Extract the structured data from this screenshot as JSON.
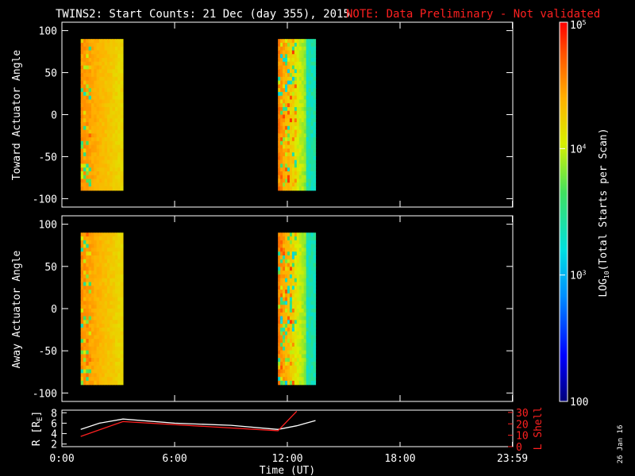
{
  "title": "TWINS2: Start Counts: 21 Dec (day 355), 2015",
  "note": "NOTE: Data Preliminary - Not validated",
  "date_stamp": "26 Jan 16",
  "colors": {
    "background": "#000000",
    "axes": "#ffffff",
    "note": "#ff2020",
    "r_line": "#ffffff",
    "lshell_line": "#ff2020"
  },
  "chart_data": [
    {
      "type": "heatmap",
      "ylabel": "Toward Actuator Angle",
      "ylim": [
        -110,
        110
      ],
      "yticks": [
        100,
        50,
        0,
        -50,
        -100
      ],
      "xlim": [
        0,
        24
      ],
      "data_blocks": [
        {
          "t_start": 1.0,
          "t_end": 3.25,
          "angle_min": -90,
          "angle_max": 90
        },
        {
          "t_start": 11.5,
          "t_end": 13.5,
          "angle_min": -90,
          "angle_max": 90
        }
      ]
    },
    {
      "type": "heatmap",
      "ylabel": "Away Actuator Angle",
      "ylim": [
        -110,
        110
      ],
      "yticks": [
        100,
        50,
        0,
        -50,
        -100
      ],
      "xlim": [
        0,
        24
      ],
      "data_blocks": [
        {
          "t_start": 1.0,
          "t_end": 3.25,
          "angle_min": -90,
          "angle_max": 90
        },
        {
          "t_start": 11.5,
          "t_end": 13.5,
          "angle_min": -90,
          "angle_max": 90
        }
      ]
    },
    {
      "type": "line",
      "ylabel": "R [R",
      "ylabel_sub": "E",
      "ylabel_close": "]",
      "xlabel": "Time (UT)",
      "xlim": [
        0,
        24
      ],
      "yticks_left": [
        8,
        6,
        4,
        2
      ],
      "ylim_left": [
        1.5,
        8.5
      ],
      "right_label": "L Shell",
      "yticks_right": [
        30,
        20,
        10,
        0
      ],
      "ylim_right": [
        0,
        32
      ],
      "xtick_labels": [
        "0:00",
        "6:00",
        "12:00",
        "18:00",
        "23:59"
      ],
      "xtick_values": [
        0,
        6,
        12,
        18,
        23.98
      ],
      "series": [
        {
          "axis": "left",
          "color": "#ffffff",
          "x": [
            1.0,
            2.0,
            3.25,
            6.0,
            9.0,
            11.5,
            12.5,
            13.5
          ],
          "y": [
            4.8,
            6.0,
            6.8,
            6.0,
            5.6,
            4.8,
            5.5,
            6.5
          ]
        },
        {
          "axis": "right",
          "color": "#ff2020",
          "x": [
            1.0,
            3.25,
            11.5,
            12.5
          ],
          "y": [
            9,
            22,
            14,
            31
          ]
        }
      ]
    }
  ],
  "colorbar": {
    "label": "LOG",
    "label_sub": "10",
    "label_rest": "(Total Starts per Scan)",
    "ticks": [
      {
        "text": "10",
        "sup": "5",
        "log": 5
      },
      {
        "text": "10",
        "sup": "4",
        "log": 4
      },
      {
        "text": "10",
        "sup": "3",
        "log": 3
      },
      {
        "text": "100",
        "sup": "",
        "log": 2
      }
    ],
    "log_min": 2,
    "log_max": 5
  }
}
